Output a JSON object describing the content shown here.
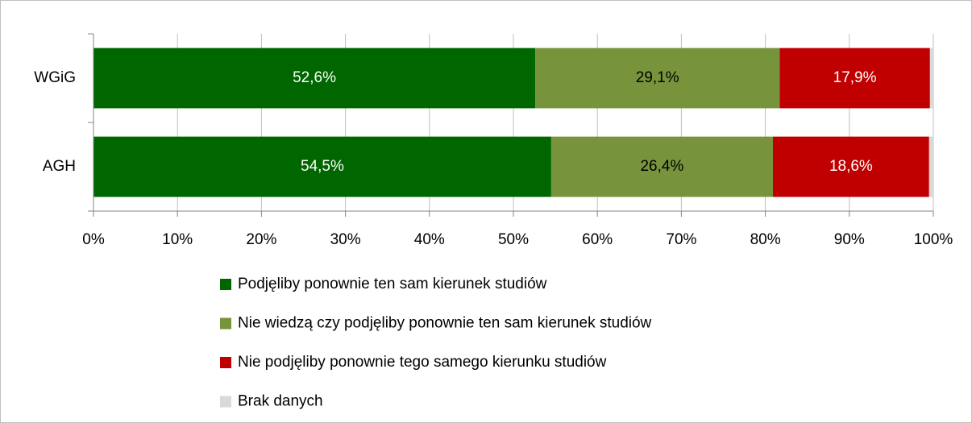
{
  "chart_data": {
    "type": "stacked-barh",
    "categories": [
      "WGiG",
      "AGH"
    ],
    "series": [
      {
        "name": "Podjęliby ponownie ten sam kierunek studiów",
        "color": "#006600",
        "values": [
          52.6,
          54.5
        ],
        "value_labels": [
          "52,6%",
          "54,5%"
        ]
      },
      {
        "name": "Nie wiedzą czy podjęliby ponownie ten sam kierunek studiów",
        "color": "#77933c",
        "values": [
          29.1,
          26.4
        ],
        "value_labels": [
          "29,1%",
          "26,4%"
        ]
      },
      {
        "name": "Nie podjęliby ponownie tego samego kierunku studiów",
        "color": "#c00000",
        "values": [
          17.9,
          18.6
        ],
        "value_labels": [
          "17,9%",
          "18,6%"
        ]
      },
      {
        "name": "Brak danych",
        "color": "#d9d9d9",
        "values": [
          0.4,
          0.5
        ]
      }
    ],
    "xlim": [
      0,
      100
    ],
    "xticks": [
      {
        "value": 0,
        "label": "0%"
      },
      {
        "value": 10,
        "label": "10%"
      },
      {
        "value": 20,
        "label": "20%"
      },
      {
        "value": 30,
        "label": "30%"
      },
      {
        "value": 40,
        "label": "40%"
      },
      {
        "value": 50,
        "label": "50%"
      },
      {
        "value": 60,
        "label": "60%"
      },
      {
        "value": 70,
        "label": "70%"
      },
      {
        "value": 80,
        "label": "80%"
      },
      {
        "value": 90,
        "label": "90%"
      },
      {
        "value": 100,
        "label": "100%"
      }
    ],
    "grid": true,
    "legend": "bottom"
  }
}
